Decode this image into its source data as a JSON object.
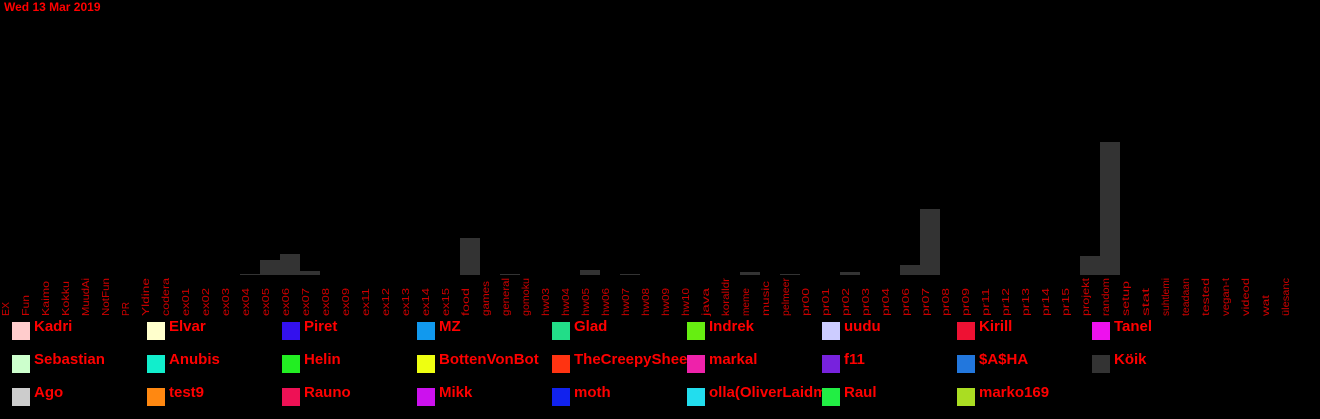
{
  "date": "Wed 13 Mar 2019",
  "chart_data": {
    "type": "bar",
    "categories": [
      "EX",
      "Fun",
      "Kaimo",
      "Kokku",
      "MuudAi",
      "NotFun",
      "PR",
      "Yldine",
      "codera",
      "ex01",
      "ex02",
      "ex03",
      "ex04",
      "ex05",
      "ex06",
      "ex07",
      "ex08",
      "ex09",
      "ex11",
      "ex12",
      "ex13",
      "ex14",
      "ex15",
      "food",
      "games",
      "general",
      "gomoku",
      "hw03",
      "hw04",
      "hw05",
      "hw06",
      "hw07",
      "hw08",
      "hw09",
      "hw10",
      "java",
      "koralldr",
      "meme",
      "music",
      "pelmeer",
      "pr00",
      "pr01",
      "pr02",
      "pr03",
      "pr04",
      "pr06",
      "pr07",
      "pr08",
      "pr09",
      "pr11",
      "pr12",
      "pr13",
      "pr14",
      "pr15",
      "projekt",
      "random",
      "setup",
      "stat",
      "suhtlemi",
      "teadaan",
      "tested",
      "vegan-t",
      "videod",
      "wat",
      "ülesanc"
    ],
    "series": [
      {
        "name": "Köik",
        "color": "#333333",
        "values": [
          0,
          0,
          0,
          0,
          0,
          0,
          0,
          0,
          0,
          0,
          0,
          0,
          1,
          15,
          21,
          4,
          0,
          0,
          0,
          0,
          0,
          0,
          0,
          37,
          0,
          1,
          0,
          0,
          0,
          5,
          0,
          1,
          0,
          0,
          0,
          0,
          0,
          3,
          0,
          1,
          0,
          0,
          3,
          0,
          0,
          10,
          66,
          0,
          0,
          0,
          0,
          0,
          0,
          0,
          19,
          133,
          0,
          0,
          0,
          0,
          0,
          0,
          0,
          0,
          0
        ]
      }
    ],
    "ylim": [
      0,
      140
    ]
  },
  "legend": [
    {
      "name": "Kadri",
      "color": "#ffcccc"
    },
    {
      "name": "Elvar",
      "color": "#ffffcc"
    },
    {
      "name": "Piret",
      "color": "#3311ee"
    },
    {
      "name": "MZ",
      "color": "#1199ee"
    },
    {
      "name": "Glad",
      "color": "#22dd88"
    },
    {
      "name": "Indrek",
      "color": "#66ee11"
    },
    {
      "name": "uudu",
      "color": "#ccccff"
    },
    {
      "name": "Kirill",
      "color": "#ee1133"
    },
    {
      "name": "Tanel",
      "color": "#ee11ee"
    },
    {
      "name": "Sebastian",
      "color": "#ccffcc"
    },
    {
      "name": "Anubis",
      "color": "#11eecc"
    },
    {
      "name": "Helin",
      "color": "#22ee22"
    },
    {
      "name": "BottenVonBot",
      "color": "#eeff11"
    },
    {
      "name": "TheCreepySheep",
      "color": "#ff3311"
    },
    {
      "name": "markal",
      "color": "#ee22aa"
    },
    {
      "name": "f11",
      "color": "#7722dd"
    },
    {
      "name": "$A$HA",
      "color": "#2277dd"
    },
    {
      "name": "Köik",
      "color": "#333333"
    },
    {
      "name": "Ago",
      "color": "#cccccc"
    },
    {
      "name": "test9",
      "color": "#ff8811"
    },
    {
      "name": "Rauno",
      "color": "#ee1155"
    },
    {
      "name": "Mikk",
      "color": "#cc11ee"
    },
    {
      "name": "moth",
      "color": "#1122ee"
    },
    {
      "name": "olla(OliverLaidma)",
      "color": "#22ddee"
    },
    {
      "name": "Raul",
      "color": "#22ee44"
    },
    {
      "name": "marko169",
      "color": "#aadd22"
    }
  ]
}
